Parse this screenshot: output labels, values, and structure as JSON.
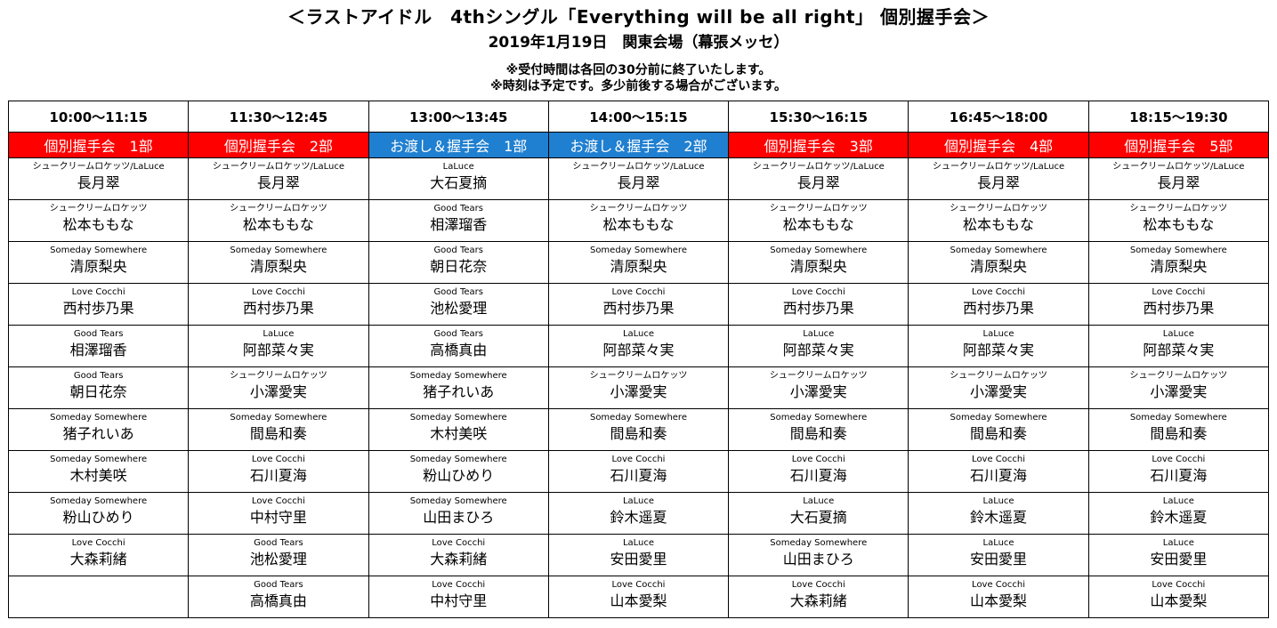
{
  "header": {
    "title": "＜ラストアイドル　4thシングル「Everything will be all right」 個別握手会＞",
    "subtitle": "2019年1月19日　関東会場（幕張メッセ）",
    "notes": [
      "※受付時間は各回の30分前に終了いたします。",
      "※時刻は予定です。多少前後する場合がございます。"
    ]
  },
  "colors": {
    "handshake": "#ff0000",
    "handover": "#1f7fd0",
    "text": "#000000",
    "session_text": "#ffffff"
  },
  "columns": [
    {
      "time": "10:00〜11:15",
      "session": "個別握手会　1部",
      "color": "red",
      "members": [
        {
          "group": "シュークリームロケッツ/LaLuce",
          "name": "長月翠"
        },
        {
          "group": "シュークリームロケッツ",
          "name": "松本ももな"
        },
        {
          "group": "Someday Somewhere",
          "name": "清原梨央"
        },
        {
          "group": "Love Cocchi",
          "name": "西村歩乃果"
        },
        {
          "group": "Good Tears",
          "name": "相澤瑠香"
        },
        {
          "group": "Good Tears",
          "name": "朝日花奈"
        },
        {
          "group": "Someday Somewhere",
          "name": "猪子れいあ"
        },
        {
          "group": "Someday Somewhere",
          "name": "木村美咲"
        },
        {
          "group": "Someday Somewhere",
          "name": "粉山ひめり"
        },
        {
          "group": "Love Cocchi",
          "name": "大森莉緒"
        },
        {
          "group": "",
          "name": ""
        }
      ]
    },
    {
      "time": "11:30〜12:45",
      "session": "個別握手会　2部",
      "color": "red",
      "members": [
        {
          "group": "シュークリームロケッツ/LaLuce",
          "name": "長月翠"
        },
        {
          "group": "シュークリームロケッツ",
          "name": "松本ももな"
        },
        {
          "group": "Someday Somewhere",
          "name": "清原梨央"
        },
        {
          "group": "Love Cocchi",
          "name": "西村歩乃果"
        },
        {
          "group": "LaLuce",
          "name": "阿部菜々実"
        },
        {
          "group": "シュークリームロケッツ",
          "name": "小澤愛実"
        },
        {
          "group": "Someday Somewhere",
          "name": "間島和奏"
        },
        {
          "group": "Love Cocchi",
          "name": "石川夏海"
        },
        {
          "group": "Love Cocchi",
          "name": "中村守里"
        },
        {
          "group": "Good Tears",
          "name": "池松愛理"
        },
        {
          "group": "Good Tears",
          "name": "高橋真由"
        }
      ]
    },
    {
      "time": "13:00〜13:45",
      "session": "お渡し＆握手会　1部",
      "color": "blue",
      "members": [
        {
          "group": "LaLuce",
          "name": "大石夏摘"
        },
        {
          "group": "Good Tears",
          "name": "相澤瑠香"
        },
        {
          "group": "Good Tears",
          "name": "朝日花奈"
        },
        {
          "group": "Good Tears",
          "name": "池松愛理"
        },
        {
          "group": "Good Tears",
          "name": "高橋真由"
        },
        {
          "group": "Someday Somewhere",
          "name": "猪子れいあ"
        },
        {
          "group": "Someday Somewhere",
          "name": "木村美咲"
        },
        {
          "group": "Someday Somewhere",
          "name": "粉山ひめり"
        },
        {
          "group": "Someday Somewhere",
          "name": "山田まひろ"
        },
        {
          "group": "Love Cocchi",
          "name": "大森莉緒"
        },
        {
          "group": "Love Cocchi",
          "name": "中村守里"
        }
      ]
    },
    {
      "time": "14:00〜15:15",
      "session": "お渡し＆握手会　2部",
      "color": "blue",
      "members": [
        {
          "group": "シュークリームロケッツ/LaLuce",
          "name": "長月翠"
        },
        {
          "group": "シュークリームロケッツ",
          "name": "松本ももな"
        },
        {
          "group": "Someday Somewhere",
          "name": "清原梨央"
        },
        {
          "group": "Love Cocchi",
          "name": "西村歩乃果"
        },
        {
          "group": "LaLuce",
          "name": "阿部菜々実"
        },
        {
          "group": "シュークリームロケッツ",
          "name": "小澤愛実"
        },
        {
          "group": "Someday Somewhere",
          "name": "間島和奏"
        },
        {
          "group": "Love Cocchi",
          "name": "石川夏海"
        },
        {
          "group": "LaLuce",
          "name": "鈴木遥夏"
        },
        {
          "group": "LaLuce",
          "name": "安田愛里"
        },
        {
          "group": "Love Cocchi",
          "name": "山本愛梨"
        }
      ]
    },
    {
      "time": "15:30〜16:15",
      "session": "個別握手会　3部",
      "color": "red",
      "members": [
        {
          "group": "シュークリームロケッツ/LaLuce",
          "name": "長月翠"
        },
        {
          "group": "シュークリームロケッツ",
          "name": "松本ももな"
        },
        {
          "group": "Someday Somewhere",
          "name": "清原梨央"
        },
        {
          "group": "Love Cocchi",
          "name": "西村歩乃果"
        },
        {
          "group": "LaLuce",
          "name": "阿部菜々実"
        },
        {
          "group": "シュークリームロケッツ",
          "name": "小澤愛実"
        },
        {
          "group": "Someday Somewhere",
          "name": "間島和奏"
        },
        {
          "group": "Love Cocchi",
          "name": "石川夏海"
        },
        {
          "group": "LaLuce",
          "name": "大石夏摘"
        },
        {
          "group": "Someday Somewhere",
          "name": "山田まひろ"
        },
        {
          "group": "Love Cocchi",
          "name": "大森莉緒"
        }
      ]
    },
    {
      "time": "16:45〜18:00",
      "session": "個別握手会　4部",
      "color": "red",
      "members": [
        {
          "group": "シュークリームロケッツ/LaLuce",
          "name": "長月翠"
        },
        {
          "group": "シュークリームロケッツ",
          "name": "松本ももな"
        },
        {
          "group": "Someday Somewhere",
          "name": "清原梨央"
        },
        {
          "group": "Love Cocchi",
          "name": "西村歩乃果"
        },
        {
          "group": "LaLuce",
          "name": "阿部菜々実"
        },
        {
          "group": "シュークリームロケッツ",
          "name": "小澤愛実"
        },
        {
          "group": "Someday Somewhere",
          "name": "間島和奏"
        },
        {
          "group": "Love Cocchi",
          "name": "石川夏海"
        },
        {
          "group": "LaLuce",
          "name": "鈴木遥夏"
        },
        {
          "group": "LaLuce",
          "name": "安田愛里"
        },
        {
          "group": "Love Cocchi",
          "name": "山本愛梨"
        }
      ]
    },
    {
      "time": "18:15〜19:30",
      "session": "個別握手会　5部",
      "color": "red",
      "members": [
        {
          "group": "シュークリームロケッツ/LaLuce",
          "name": "長月翠"
        },
        {
          "group": "シュークリームロケッツ",
          "name": "松本ももな"
        },
        {
          "group": "Someday Somewhere",
          "name": "清原梨央"
        },
        {
          "group": "Love Cocchi",
          "name": "西村歩乃果"
        },
        {
          "group": "LaLuce",
          "name": "阿部菜々実"
        },
        {
          "group": "シュークリームロケッツ",
          "name": "小澤愛実"
        },
        {
          "group": "Someday Somewhere",
          "name": "間島和奏"
        },
        {
          "group": "Love Cocchi",
          "name": "石川夏海"
        },
        {
          "group": "LaLuce",
          "name": "鈴木遥夏"
        },
        {
          "group": "LaLuce",
          "name": "安田愛里"
        },
        {
          "group": "Love Cocchi",
          "name": "山本愛梨"
        }
      ]
    }
  ]
}
